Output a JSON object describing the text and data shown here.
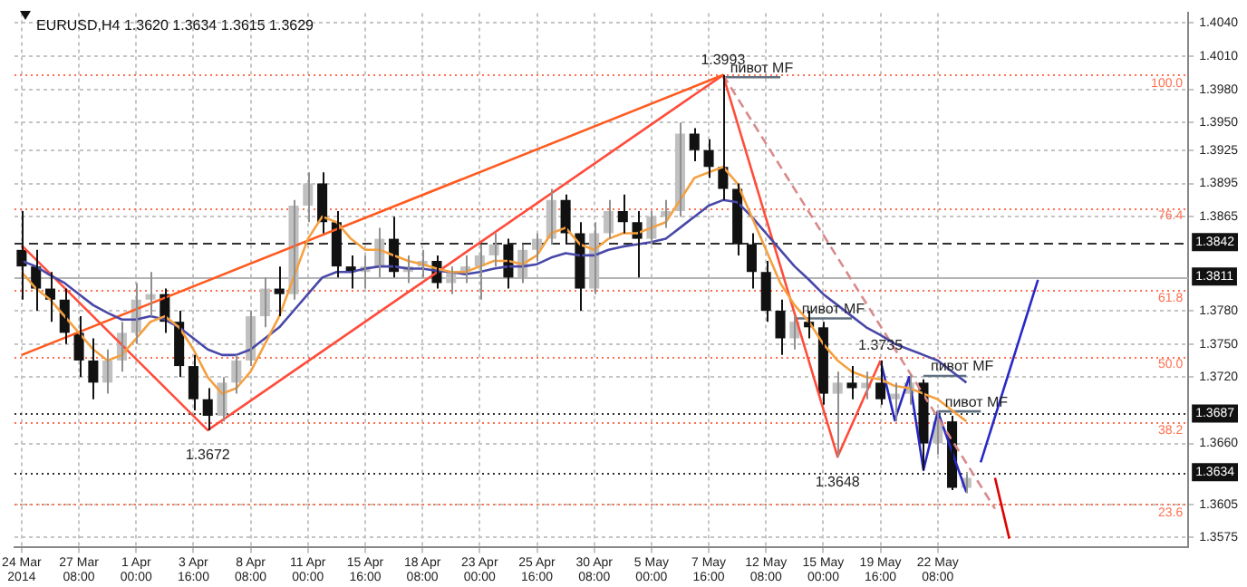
{
  "chart_data": {
    "type": "candlestick",
    "title": "EURUSD,H4 1.3620 1.3634 1.3615 1.3629",
    "categories": [
      "24 Mar 2014",
      null,
      null,
      null,
      "27 Mar 08:00",
      null,
      null,
      null,
      "1 Apr 00:00",
      null,
      null,
      null,
      "3 Apr 16:00",
      null,
      null,
      null,
      "8 Apr 08:00",
      null,
      null,
      null,
      "11 Apr 00:00",
      null,
      null,
      null,
      "15 Apr 16:00",
      null,
      null,
      null,
      "18 Apr 08:00",
      null,
      null,
      null,
      "23 Apr 00:00",
      null,
      null,
      null,
      "25 Apr 16:00",
      null,
      null,
      null,
      "30 Apr 08:00",
      null,
      null,
      null,
      "5 May 00:00",
      null,
      null,
      null,
      "7 May 16:00",
      null,
      null,
      null,
      "12 May 08:00",
      null,
      null,
      null,
      "15 May 00:00",
      null,
      null,
      null,
      "19 May 16:00",
      null,
      null,
      null,
      "22 May 08:00",
      null,
      null,
      null,
      null,
      null,
      null,
      null,
      null,
      null,
      null,
      null,
      null,
      null,
      null,
      null,
      null,
      null
    ],
    "ohlc": [
      [
        1.3835,
        1.387,
        1.379,
        1.382
      ],
      [
        1.382,
        1.3835,
        1.378,
        1.38
      ],
      [
        1.38,
        1.3815,
        1.377,
        1.379
      ],
      [
        1.379,
        1.38,
        1.375,
        1.376
      ],
      [
        1.376,
        1.3775,
        1.372,
        1.3735
      ],
      [
        1.3735,
        1.3755,
        1.37,
        1.3715
      ],
      [
        1.3715,
        1.3745,
        1.3705,
        1.3735
      ],
      [
        1.3735,
        1.377,
        1.3725,
        1.376
      ],
      [
        1.376,
        1.3805,
        1.375,
        1.379
      ],
      [
        1.379,
        1.3815,
        1.3775,
        1.3795
      ],
      [
        1.3795,
        1.38,
        1.376,
        1.377
      ],
      [
        1.377,
        1.378,
        1.372,
        1.373
      ],
      [
        1.373,
        1.374,
        1.369,
        1.37
      ],
      [
        1.37,
        1.371,
        1.3672,
        1.3685
      ],
      [
        1.3685,
        1.372,
        1.368,
        1.3715
      ],
      [
        1.3715,
        1.374,
        1.3705,
        1.3735
      ],
      [
        1.3735,
        1.378,
        1.373,
        1.3775
      ],
      [
        1.3775,
        1.381,
        1.3765,
        1.38
      ],
      [
        1.38,
        1.382,
        1.3775,
        1.3795
      ],
      [
        1.3795,
        1.388,
        1.379,
        1.3875
      ],
      [
        1.3875,
        1.3905,
        1.386,
        1.3895
      ],
      [
        1.3895,
        1.3905,
        1.385,
        1.386
      ],
      [
        1.386,
        1.387,
        1.381,
        1.382
      ],
      [
        1.382,
        1.383,
        1.38,
        1.3815
      ],
      [
        1.3815,
        1.383,
        1.38,
        1.382
      ],
      [
        1.382,
        1.3855,
        1.381,
        1.3845
      ],
      [
        1.3845,
        1.3865,
        1.381,
        1.3815
      ],
      [
        1.3815,
        1.383,
        1.3805,
        1.382
      ],
      [
        1.382,
        1.3835,
        1.381,
        1.3825
      ],
      [
        1.3825,
        1.383,
        1.38,
        1.3805
      ],
      [
        1.3805,
        1.382,
        1.3795,
        1.3815
      ],
      [
        1.3815,
        1.383,
        1.3805,
        1.382
      ],
      [
        1.382,
        1.384,
        1.379,
        1.383
      ],
      [
        1.383,
        1.385,
        1.382,
        1.384
      ],
      [
        1.384,
        1.3845,
        1.38,
        1.381
      ],
      [
        1.381,
        1.384,
        1.3805,
        1.3835
      ],
      [
        1.3835,
        1.385,
        1.3825,
        1.3845
      ],
      [
        1.3845,
        1.389,
        1.384,
        1.388
      ],
      [
        1.388,
        1.3885,
        1.384,
        1.385
      ],
      [
        1.385,
        1.386,
        1.378,
        1.38
      ],
      [
        1.38,
        1.386,
        1.3795,
        1.385
      ],
      [
        1.385,
        1.388,
        1.3845,
        1.387
      ],
      [
        1.387,
        1.3885,
        1.385,
        1.386
      ],
      [
        1.386,
        1.387,
        1.381,
        1.3845
      ],
      [
        1.3845,
        1.387,
        1.384,
        1.3865
      ],
      [
        1.3865,
        1.388,
        1.3855,
        1.387
      ],
      [
        1.387,
        1.395,
        1.3865,
        1.394
      ],
      [
        1.394,
        1.3945,
        1.3915,
        1.3925
      ],
      [
        1.3925,
        1.3935,
        1.39,
        1.391
      ],
      [
        1.391,
        1.3993,
        1.388,
        1.389
      ],
      [
        1.389,
        1.3895,
        1.383,
        1.384
      ],
      [
        1.384,
        1.385,
        1.38,
        1.3815
      ],
      [
        1.3815,
        1.3825,
        1.377,
        1.378
      ],
      [
        1.378,
        1.379,
        1.374,
        1.3755
      ],
      [
        1.3755,
        1.3775,
        1.3745,
        1.377
      ],
      [
        1.377,
        1.378,
        1.3755,
        1.3765
      ],
      [
        1.3765,
        1.377,
        1.3695,
        1.3705
      ],
      [
        1.3705,
        1.3725,
        1.3648,
        1.3715
      ],
      [
        1.3715,
        1.373,
        1.37,
        1.371
      ],
      [
        1.371,
        1.3725,
        1.37,
        1.3715
      ],
      [
        1.3715,
        1.3735,
        1.3695,
        1.37
      ],
      [
        1.37,
        1.3715,
        1.368,
        1.3705
      ],
      [
        1.3705,
        1.3722,
        1.3695,
        1.3715
      ],
      [
        1.3715,
        1.3718,
        1.3636,
        1.366
      ],
      [
        1.366,
        1.369,
        1.365,
        1.368
      ],
      [
        1.368,
        1.3685,
        1.3618,
        1.362
      ],
      [
        1.362,
        1.3634,
        1.3615,
        1.3629
      ],
      null,
      null,
      null,
      null,
      null,
      null,
      null,
      null,
      null,
      null,
      null,
      null,
      null,
      null,
      null
    ],
    "series": [
      {
        "type": "line",
        "color": "#f5a040",
        "values": [
          1.3815,
          1.38,
          1.379,
          1.3775,
          1.376,
          1.3745,
          1.3735,
          1.374,
          1.3755,
          1.377,
          1.3775,
          1.3765,
          1.3745,
          1.372,
          1.3705,
          1.371,
          1.3725,
          1.375,
          1.3775,
          1.381,
          1.3845,
          1.3865,
          1.386,
          1.3845,
          1.3835,
          1.3835,
          1.383,
          1.3825,
          1.3822,
          1.3818,
          1.3815,
          1.3815,
          1.382,
          1.3825,
          1.3825,
          1.3822,
          1.383,
          1.385,
          1.3855,
          1.384,
          1.3835,
          1.3845,
          1.385,
          1.385,
          1.3855,
          1.386,
          1.388,
          1.39,
          1.3905,
          1.391,
          1.3895,
          1.3865,
          1.3835,
          1.3805,
          1.3785,
          1.377,
          1.375,
          1.3735,
          1.3725,
          1.372,
          1.3718,
          1.3712,
          1.371,
          1.3705,
          1.37,
          1.369,
          1.368,
          null,
          null,
          null,
          null,
          null,
          null,
          null,
          null,
          null,
          null,
          null,
          null,
          null,
          null,
          null
        ]
      },
      {
        "type": "line",
        "color": "#4848a8",
        "values": [
          1.3825,
          1.382,
          1.3812,
          1.3805,
          1.3795,
          1.3785,
          1.3778,
          1.3772,
          1.3772,
          1.3775,
          1.3772,
          1.3765,
          1.3755,
          1.3745,
          1.374,
          1.374,
          1.3745,
          1.3755,
          1.3765,
          1.378,
          1.3795,
          1.381,
          1.3815,
          1.3815,
          1.3818,
          1.382,
          1.382,
          1.3818,
          1.3818,
          1.3816,
          1.3815,
          1.3813,
          1.3815,
          1.3818,
          1.382,
          1.382,
          1.3822,
          1.3828,
          1.3832,
          1.383,
          1.383,
          1.3835,
          1.3838,
          1.384,
          1.3842,
          1.3845,
          1.3855,
          1.3865,
          1.3875,
          1.388,
          1.3878,
          1.3865,
          1.385,
          1.3835,
          1.382,
          1.3808,
          1.3795,
          1.3785,
          1.3775,
          1.3765,
          1.3758,
          1.375,
          1.3745,
          1.374,
          1.3735,
          1.3725,
          1.3715,
          null,
          null,
          null,
          null,
          null,
          null,
          null,
          null,
          null,
          null,
          null,
          null,
          null,
          null,
          null
        ]
      },
      {
        "type": "line",
        "color": "#ff5a1f",
        "values": [
          1.374,
          null,
          null,
          null,
          null,
          null,
          null,
          null,
          null,
          null,
          null,
          null,
          null,
          null,
          null,
          null,
          null,
          null,
          null,
          null,
          null,
          null,
          null,
          null,
          null,
          null,
          null,
          null,
          null,
          null,
          null,
          null,
          null,
          null,
          null,
          null,
          null,
          null,
          null,
          null,
          null,
          null,
          null,
          null,
          null,
          null,
          null,
          null,
          null,
          1.3993,
          null,
          null,
          null,
          null,
          null,
          null,
          null,
          null,
          null,
          null,
          null,
          null,
          null,
          null,
          null,
          null,
          null,
          null,
          null,
          null,
          null,
          null,
          null,
          null,
          null,
          null,
          null,
          null,
          null,
          null,
          null,
          null
        ]
      },
      {
        "type": "line",
        "color": "#ff4c3b",
        "values": [
          1.3839,
          null,
          null,
          null,
          null,
          null,
          null,
          null,
          null,
          null,
          null,
          null,
          null,
          1.3672,
          null,
          null,
          null,
          null,
          null,
          null,
          null,
          null,
          null,
          null,
          null,
          null,
          null,
          null,
          null,
          null,
          null,
          null,
          null,
          null,
          null,
          null,
          null,
          null,
          null,
          null,
          null,
          null,
          null,
          null,
          null,
          null,
          null,
          null,
          null,
          1.3993,
          null,
          null,
          null,
          null,
          null,
          null,
          null,
          1.3648,
          null,
          null,
          1.3735,
          null,
          null,
          null,
          null,
          null,
          null,
          null,
          null,
          null,
          null,
          null,
          null,
          null,
          null,
          null,
          null,
          null,
          null,
          null,
          null,
          null
        ],
        "value_labels": [
          null,
          null,
          null,
          null,
          null,
          null,
          null,
          null,
          null,
          null,
          null,
          null,
          null,
          "1.3672",
          null,
          null,
          null,
          null,
          null,
          null,
          null,
          null,
          null,
          null,
          null,
          null,
          null,
          null,
          null,
          null,
          null,
          null,
          null,
          null,
          null,
          null,
          null,
          null,
          null,
          null,
          null,
          null,
          null,
          null,
          null,
          null,
          null,
          null,
          null,
          "1.3993",
          null,
          null,
          null,
          null,
          null,
          null,
          null,
          "1.3648",
          null,
          null,
          "1.3735",
          null,
          null,
          null,
          null,
          null,
          null,
          null,
          null,
          null,
          null,
          null,
          null,
          null,
          null,
          null,
          null,
          null,
          null,
          null,
          null,
          null
        ]
      },
      {
        "type": "line",
        "color": "#d98a8a",
        "line_style": "dashed",
        "values": [
          null,
          null,
          null,
          null,
          null,
          null,
          null,
          null,
          null,
          null,
          null,
          null,
          null,
          null,
          null,
          null,
          null,
          null,
          null,
          null,
          null,
          null,
          null,
          null,
          null,
          null,
          null,
          null,
          null,
          null,
          null,
          null,
          null,
          null,
          null,
          null,
          null,
          null,
          null,
          null,
          null,
          null,
          null,
          null,
          null,
          null,
          null,
          null,
          null,
          1.3993,
          null,
          null,
          null,
          null,
          null,
          null,
          null,
          null,
          null,
          null,
          null,
          null,
          null,
          null,
          null,
          null,
          null,
          null,
          1.3601,
          null,
          null,
          null,
          null,
          null,
          null,
          null,
          null,
          null,
          null,
          null,
          null,
          null
        ]
      },
      {
        "type": "line",
        "color": "#2828c0",
        "values": [
          null,
          null,
          null,
          null,
          null,
          null,
          null,
          null,
          null,
          null,
          null,
          null,
          null,
          null,
          null,
          null,
          null,
          null,
          null,
          null,
          null,
          null,
          null,
          null,
          null,
          null,
          null,
          null,
          null,
          null,
          null,
          null,
          null,
          null,
          null,
          null,
          null,
          null,
          null,
          null,
          null,
          null,
          null,
          null,
          null,
          null,
          null,
          null,
          null,
          null,
          null,
          null,
          null,
          null,
          null,
          null,
          null,
          null,
          null,
          null,
          1.3735,
          1.3681,
          1.372,
          1.3636,
          1.3689,
          null,
          1.3616,
          null,
          null,
          null,
          null,
          null,
          null,
          null,
          null,
          null,
          null,
          null,
          null,
          null,
          null,
          null
        ]
      },
      {
        "type": "line",
        "color": "#2828c8",
        "values": [
          null,
          null,
          null,
          null,
          null,
          null,
          null,
          null,
          null,
          null,
          null,
          null,
          null,
          null,
          null,
          null,
          null,
          null,
          null,
          null,
          null,
          null,
          null,
          null,
          null,
          null,
          null,
          null,
          null,
          null,
          null,
          null,
          null,
          null,
          null,
          null,
          null,
          null,
          null,
          null,
          null,
          null,
          null,
          null,
          null,
          null,
          null,
          null,
          null,
          null,
          null,
          null,
          null,
          null,
          null,
          null,
          null,
          null,
          null,
          null,
          null,
          null,
          null,
          null,
          null,
          null,
          null,
          1.3643,
          null,
          null,
          null,
          1.3808,
          null,
          null,
          null,
          null,
          null,
          null,
          null,
          null,
          null,
          null
        ]
      },
      {
        "type": "line",
        "color": "#e00000",
        "values": [
          null,
          null,
          null,
          null,
          null,
          null,
          null,
          null,
          null,
          null,
          null,
          null,
          null,
          null,
          null,
          null,
          null,
          null,
          null,
          null,
          null,
          null,
          null,
          null,
          null,
          null,
          null,
          null,
          null,
          null,
          null,
          null,
          null,
          null,
          null,
          null,
          null,
          null,
          null,
          null,
          null,
          null,
          null,
          null,
          null,
          null,
          null,
          null,
          null,
          null,
          null,
          null,
          null,
          null,
          null,
          null,
          null,
          null,
          null,
          null,
          null,
          null,
          null,
          null,
          null,
          null,
          null,
          null,
          1.3629,
          1.3574,
          null,
          null,
          null,
          null,
          null,
          null,
          null,
          null,
          null,
          null,
          null,
          null
        ]
      },
      {
        "type": "line",
        "name": "пивот MF",
        "color": "#607080",
        "values": [
          null,
          null,
          null,
          null,
          null,
          null,
          null,
          null,
          null,
          null,
          null,
          null,
          null,
          null,
          null,
          null,
          null,
          null,
          null,
          null,
          null,
          null,
          null,
          null,
          null,
          null,
          null,
          null,
          null,
          null,
          null,
          null,
          null,
          null,
          null,
          null,
          null,
          null,
          null,
          null,
          null,
          null,
          null,
          null,
          null,
          null,
          null,
          null,
          null,
          1.3991,
          1.3991,
          1.3991,
          1.3991,
          1.3991,
          null,
          null,
          null,
          null,
          null,
          null,
          null,
          null,
          null,
          null,
          null,
          null,
          null,
          null,
          null,
          null,
          null,
          null,
          null,
          null,
          null,
          null,
          null,
          null,
          null,
          null,
          null,
          null
        ]
      },
      {
        "type": "line",
        "name": "пивот MF",
        "color": "#607080",
        "values": [
          null,
          null,
          null,
          null,
          null,
          null,
          null,
          null,
          null,
          null,
          null,
          null,
          null,
          null,
          null,
          null,
          null,
          null,
          null,
          null,
          null,
          null,
          null,
          null,
          null,
          null,
          null,
          null,
          null,
          null,
          null,
          null,
          null,
          null,
          null,
          null,
          null,
          null,
          null,
          null,
          null,
          null,
          null,
          null,
          null,
          null,
          null,
          null,
          null,
          null,
          null,
          null,
          null,
          null,
          1.3773,
          1.3773,
          1.3773,
          1.3773,
          1.3773,
          null,
          null,
          null,
          null,
          null,
          null,
          null,
          null,
          null,
          null,
          null,
          null,
          null,
          null,
          null,
          null,
          null,
          null,
          null,
          null,
          null,
          null,
          null
        ]
      },
      {
        "type": "line",
        "name": "пивот MF",
        "color": "#607080",
        "values": [
          null,
          null,
          null,
          null,
          null,
          null,
          null,
          null,
          null,
          null,
          null,
          null,
          null,
          null,
          null,
          null,
          null,
          null,
          null,
          null,
          null,
          null,
          null,
          null,
          null,
          null,
          null,
          null,
          null,
          null,
          null,
          null,
          null,
          null,
          null,
          null,
          null,
          null,
          null,
          null,
          null,
          null,
          null,
          null,
          null,
          null,
          null,
          null,
          null,
          null,
          null,
          null,
          null,
          null,
          null,
          null,
          null,
          null,
          null,
          null,
          null,
          null,
          null,
          1.3721,
          1.3721,
          1.3721,
          1.3721,
          null,
          null,
          null,
          null,
          null,
          null,
          null,
          null,
          null,
          null,
          null,
          null,
          null,
          null,
          null
        ]
      },
      {
        "type": "line",
        "name": "пивот MF",
        "color": "#607080",
        "values": [
          null,
          null,
          null,
          null,
          null,
          null,
          null,
          null,
          null,
          null,
          null,
          null,
          null,
          null,
          null,
          null,
          null,
          null,
          null,
          null,
          null,
          null,
          null,
          null,
          null,
          null,
          null,
          null,
          null,
          null,
          null,
          null,
          null,
          null,
          null,
          null,
          null,
          null,
          null,
          null,
          null,
          null,
          null,
          null,
          null,
          null,
          null,
          null,
          null,
          null,
          null,
          null,
          null,
          null,
          null,
          null,
          null,
          null,
          null,
          null,
          null,
          null,
          null,
          null,
          1.3689,
          1.3689,
          1.3689,
          1.3689,
          null,
          null,
          null,
          null,
          null,
          null,
          null,
          null,
          null,
          null,
          null,
          null,
          null,
          null
        ]
      }
    ],
    "ylim": [
      1.3566,
      1.4049
    ],
    "yticks": [
      1.3575,
      1.3605,
      {
        "value": 1.366,
        "label": "1.3660"
      },
      {
        "value": 1.372,
        "label": "1.3720"
      },
      {
        "value": 1.375,
        "label": "1.3750"
      },
      {
        "value": 1.378,
        "label": "1.3780"
      },
      1.3865,
      1.3895,
      1.3925,
      {
        "value": 1.395,
        "label": "1.3950"
      },
      {
        "value": 1.398,
        "label": "1.3980"
      },
      {
        "value": 1.401,
        "label": "1.4010"
      },
      {
        "value": 1.404,
        "label": "1.4040"
      }
    ],
    "annotations": [
      {
        "text": "100.0",
        "y": 1.3993
      },
      {
        "text": "76.4",
        "y": 1.3873
      },
      {
        "text": "61.8",
        "y": 1.3799
      },
      {
        "text": "50.0",
        "y": 1.3739
      },
      {
        "text": "38.2",
        "y": 1.3679
      },
      {
        "text": "23.6",
        "y": 1.3605
      }
    ],
    "ref_lines": [
      {
        "axis": "y",
        "value": 1.3993,
        "color": "#ff7050",
        "line_style": "dotted"
      },
      {
        "axis": "y",
        "value": 1.3873,
        "color": "#ff7050",
        "line_style": "dotted"
      },
      {
        "axis": "y",
        "value": 1.3799,
        "color": "#ff7050",
        "line_style": "dotted"
      },
      {
        "axis": "y",
        "value": 1.3739,
        "color": "#ff7050",
        "line_style": "dotted"
      },
      {
        "axis": "y",
        "value": 1.3679,
        "color": "#ff7050",
        "line_style": "dotted"
      },
      {
        "axis": "y",
        "value": 1.3605,
        "color": "#ff7050",
        "line_style": "dotted"
      },
      {
        "axis": "y",
        "value": 1.3842,
        "label": "1.3842",
        "color": "#303030",
        "line_style": "dashed"
      },
      {
        "axis": "y",
        "value": 1.3811,
        "label": "1.3811",
        "color": "#b4b4b4",
        "line_style": "solid"
      },
      {
        "axis": "y",
        "value": 1.3687,
        "label": "1.3687",
        "color": "#303030",
        "line_style": "dotted"
      },
      {
        "axis": "y",
        "value": 1.3634,
        "label": "1.3634",
        "color": "#303030",
        "line_style": "dotted"
      }
    ],
    "grid": true
  }
}
